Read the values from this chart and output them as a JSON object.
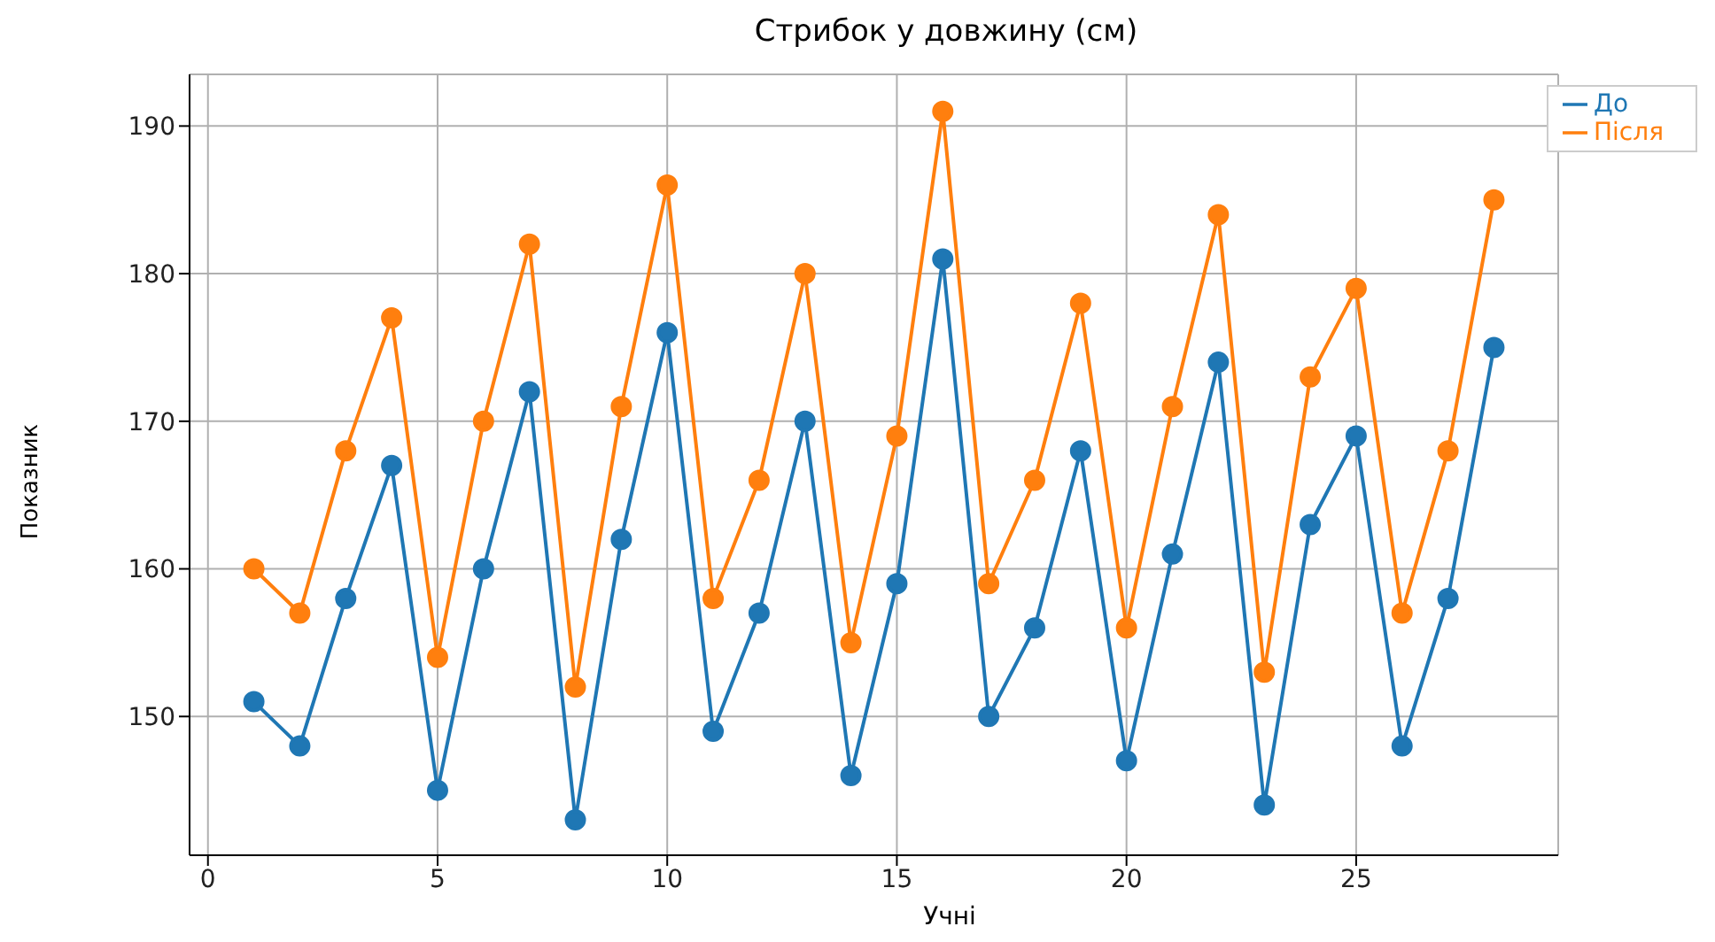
{
  "chart_data": {
    "type": "line",
    "title": "Стрибок у довжину (см)",
    "xlabel": "Учні",
    "ylabel": "Показник",
    "x": [
      1,
      2,
      3,
      4,
      5,
      6,
      7,
      8,
      9,
      10,
      11,
      12,
      13,
      14,
      15,
      16,
      17,
      18,
      19,
      20,
      21,
      22,
      23,
      24,
      25,
      26,
      27,
      28
    ],
    "series": [
      {
        "name": "До",
        "color": "#1f77b4",
        "values": [
          151,
          148,
          158,
          167,
          145,
          160,
          172,
          143,
          162,
          176,
          149,
          157,
          170,
          146,
          159,
          181,
          150,
          156,
          168,
          147,
          161,
          174,
          144,
          163,
          169,
          148,
          158,
          175
        ]
      },
      {
        "name": "Після",
        "color": "#ff7f0e",
        "values": [
          160,
          157,
          168,
          177,
          154,
          170,
          182,
          152,
          171,
          186,
          158,
          166,
          180,
          155,
          169,
          191,
          159,
          166,
          178,
          156,
          171,
          184,
          153,
          173,
          179,
          157,
          168,
          185
        ]
      }
    ],
    "xlim": [
      -0.4,
      29.4
    ],
    "xticks": [
      0,
      5,
      10,
      15,
      20,
      25
    ],
    "ylim": [
      140.6,
      193.5
    ],
    "yticks": [
      150,
      160,
      170,
      180,
      190
    ],
    "grid": true,
    "legend": "top right",
    "marker": "circle",
    "line_style": "solid"
  }
}
